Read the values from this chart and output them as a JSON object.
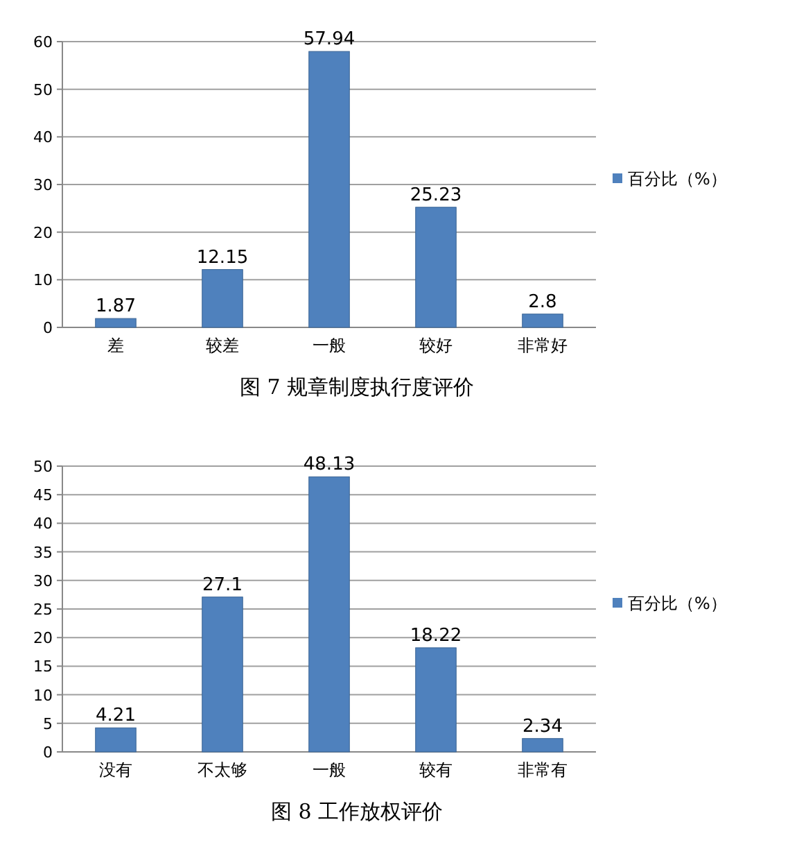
{
  "chart_data": [
    {
      "type": "bar",
      "title": "图 7 规章制度执行度评价",
      "categories": [
        "差",
        "较差",
        "一般",
        "较好",
        "非常好"
      ],
      "series": [
        {
          "name": "百分比（%）",
          "color": "#4f81bd",
          "values": [
            1.87,
            12.15,
            57.94,
            25.23,
            2.8
          ]
        }
      ],
      "ylim": [
        0,
        60
      ],
      "yticks": [
        0,
        10,
        20,
        30,
        40,
        50,
        60
      ],
      "grid": "y",
      "legend": "right",
      "data_labels": true
    },
    {
      "type": "bar",
      "title": "图 8 工作放权评价",
      "categories": [
        "没有",
        "不太够",
        "一般",
        "较有",
        "非常有"
      ],
      "series": [
        {
          "name": "百分比（%）",
          "color": "#4f81bd",
          "values": [
            4.21,
            27.1,
            48.13,
            18.22,
            2.34
          ]
        }
      ],
      "ylim": [
        0,
        50
      ],
      "yticks": [
        0,
        5,
        10,
        15,
        20,
        25,
        30,
        35,
        40,
        45,
        50
      ],
      "grid": "y",
      "legend": "right",
      "data_labels": true
    }
  ]
}
